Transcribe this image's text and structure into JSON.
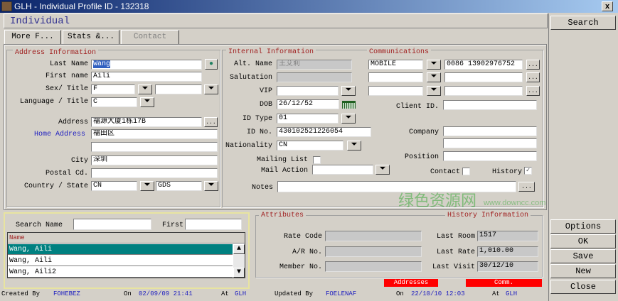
{
  "window": {
    "title": "GLH - Individual Profile ID - 132318",
    "close": "x"
  },
  "header": {
    "title": "Individual"
  },
  "tabs": [
    "More F...",
    "Stats &...",
    "Contact"
  ],
  "address": {
    "group_title": "Address Information",
    "last_name_label": "Last Name",
    "last_name": "Wang",
    "first_name_label": "First name",
    "first_name": "Aili",
    "sex_title_label": "Sex/ Title",
    "sex": "F",
    "title": "",
    "language_label": "Language / Title",
    "language": "C",
    "address_label": "Address",
    "address1": "福源大厦1栋17B",
    "home_address_label": "Home Address",
    "address2": "福田区",
    "address3": "",
    "city_label": "City",
    "city": "深圳",
    "postal_label": "Postal Cd.",
    "postal": "",
    "country_state_label": "Country / State",
    "country": "CN",
    "state": "GDS"
  },
  "internal": {
    "group_title": "Internal Information",
    "alt_name_label": "Alt. Name",
    "alt_name": "王艾莉",
    "salutation_label": "Salutation",
    "salutation": "",
    "vip_label": "VIP",
    "vip": "",
    "dob_label": "DOB",
    "dob": "26/12/52",
    "id_type_label": "ID Type",
    "id_type": "01",
    "id_no_label": "ID No.",
    "id_no": "430102521226054",
    "nationality_label": "Nationality",
    "nationality": "CN",
    "mailing_list_label": "Mailing List",
    "mail_action_label": "Mail Action",
    "mail_action": "",
    "notes_label": "Notes",
    "notes": ""
  },
  "communications": {
    "group_title": "Communications",
    "rows": [
      {
        "type": "MOBILE",
        "value": "0086 13902976752"
      },
      {
        "type": "",
        "value": ""
      },
      {
        "type": "",
        "value": ""
      }
    ],
    "client_id_label": "Client ID.",
    "client_id": "",
    "company_label": "Company",
    "company": "",
    "company2": "",
    "position_label": "Position",
    "position": "",
    "contact_label": "Contact",
    "contact_checked": false,
    "history_label": "History",
    "history_checked": true
  },
  "search": {
    "name_label": "Search Name",
    "name": "",
    "first_label": "First",
    "first": "",
    "column": "Name",
    "results": [
      "Wang, Aili",
      "Wang, Aili",
      "Wang, Aili2"
    ]
  },
  "attributes": {
    "group_title": "Attributes",
    "history_title": "History Information",
    "rate_code_label": "Rate Code",
    "rate_code": "",
    "ar_no_label": "A/R No.",
    "ar_no": "",
    "member_no_label": "Member No.",
    "member_no": "",
    "last_room_label": "Last Room",
    "last_room": "1517",
    "last_rate_label": "Last Rate",
    "last_rate": "1,010.00",
    "last_visit_label": "Last Visit",
    "last_visit": "30/12/10"
  },
  "indicators": {
    "addresses": "Addresses",
    "comm": "Comm."
  },
  "footer": {
    "created_by_label": "Created By",
    "created_by": "FOHEBEZ",
    "created_on_label": "On",
    "created_on": "02/09/09 21:41",
    "created_at_label": "At",
    "created_at": "GLH",
    "updated_by_label": "Updated By",
    "updated_by": "FOELENAF",
    "updated_on_label": "On",
    "updated_on": "22/10/10 12:03",
    "updated_at_label": "At",
    "updated_at": "GLH"
  },
  "buttons": {
    "search": "Search",
    "options": "Options",
    "ok": "OK",
    "save": "Save",
    "new": "New",
    "close": "Close"
  },
  "watermark": {
    "text": "绿色资源网",
    "url": "www.downcc.com"
  },
  "colors": {
    "selection": "#008080",
    "label_red": "#a02020",
    "link_blue": "#2020c0",
    "indicator_red": "#ff0000"
  }
}
